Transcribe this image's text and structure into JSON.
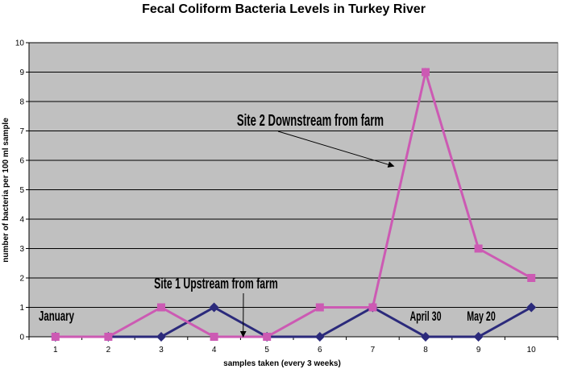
{
  "chart_data": {
    "type": "line",
    "title": "Fecal Coliform Bacteria Levels in Turkey River",
    "xlabel": "samples taken (every 3 weeks)",
    "ylabel": "number of bacteria per 100 ml sample",
    "x": [
      1,
      2,
      3,
      4,
      5,
      6,
      7,
      8,
      9,
      10
    ],
    "xlim": [
      0.5,
      10.5
    ],
    "ylim": [
      0,
      10
    ],
    "yticks": [
      0,
      1,
      2,
      3,
      4,
      5,
      6,
      7,
      8,
      9,
      10
    ],
    "grid": true,
    "legend": "none",
    "series": [
      {
        "values": [
          0,
          0,
          0,
          1,
          0,
          0,
          1,
          0,
          0,
          1
        ],
        "color": "#2b2a7b",
        "marker": "diamond"
      },
      {
        "values": [
          0,
          0,
          1,
          0,
          0,
          1,
          1,
          9,
          3,
          2
        ],
        "color": "#cc5ab3",
        "marker": "square"
      }
    ],
    "plot_background": "#c0c0c0",
    "annotations": [
      {
        "text": "Site 2 Downstream from farm",
        "arrow_to": [
          7.4,
          5.8
        ]
      },
      {
        "text": "Site 1 Upstream from farm",
        "arrow_to": [
          4.55,
          0
        ]
      },
      {
        "text": "January"
      },
      {
        "text": "April 30"
      },
      {
        "text": "May 20"
      }
    ]
  }
}
